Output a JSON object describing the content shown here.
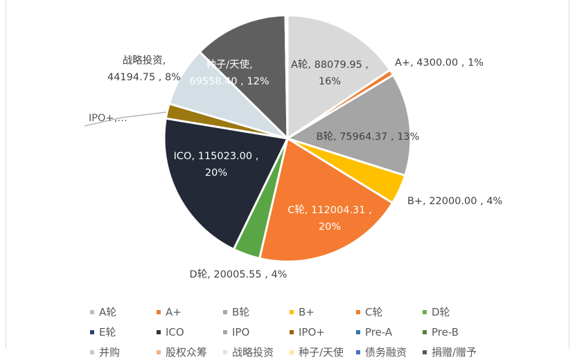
{
  "chart_data": {
    "type": "pie",
    "slices": [
      {
        "name": "A轮",
        "value": 88079.95,
        "percent": "16%",
        "color": "#d9d9d9",
        "label": "A轮, 88079.95 ,\n16%"
      },
      {
        "name": "A+",
        "value": 4300.0,
        "percent": "1%",
        "color": "#ed7d31",
        "label": "A+, 4300.00 , 1%"
      },
      {
        "name": "B轮",
        "value": 75964.37,
        "percent": "13%",
        "color": "#a5a5a5",
        "label": "B轮, 75964.37 , 13%"
      },
      {
        "name": "B+",
        "value": 22000.0,
        "percent": "4%",
        "color": "#ffc000",
        "label": "B+, 22000.00 , 4%"
      },
      {
        "name": "C轮",
        "value": 112004.31,
        "percent": "20%",
        "color": "#f47b31",
        "label": "C轮, 112004.31 ,\n20%"
      },
      {
        "name": "D轮",
        "value": 20005.55,
        "percent": "4%",
        "color": "#5aa546",
        "label": "D轮, 20005.55 , 4%"
      },
      {
        "name": "ICO",
        "value": 115023.0,
        "percent": "20%",
        "color": "#232936",
        "label": "ICO, 115023.00 ,\n20%"
      },
      {
        "name": "IPO+",
        "value": 11000,
        "percent": "",
        "color": "#9c7810",
        "label": "IPO+,…"
      },
      {
        "name": "战略投资",
        "value": 44194.75,
        "percent": "8%",
        "color": "#d3dee5",
        "label": "战略投资,\n44194.75 , 8%"
      },
      {
        "name": "种子/天使",
        "value": 69558.4,
        "percent": "12%",
        "color": "#5f5f5f",
        "label": "种子/天使,\n69558.40 , 12%"
      },
      {
        "name": "债务融资",
        "value": 1500,
        "percent": "",
        "color": "#b8c4cc",
        "label": ""
      }
    ],
    "legend": {
      "rows": [
        [
          {
            "label": "A轮",
            "color": "#bfbfbf"
          },
          {
            "label": "A+",
            "color": "#ed7d31"
          },
          {
            "label": "B轮",
            "color": "#a5a5a5"
          },
          {
            "label": "B+",
            "color": "#ffc000"
          },
          {
            "label": "C轮",
            "color": "#ed7d31"
          },
          {
            "label": "D轮",
            "color": "#70ad47"
          }
        ],
        [
          {
            "label": "E轮",
            "color": "#264478"
          },
          {
            "label": "ICO",
            "color": "#333333"
          },
          {
            "label": "IPO",
            "color": "#a5a5a5"
          },
          {
            "label": "IPO+",
            "color": "#9c6500"
          },
          {
            "label": "Pre-A",
            "color": "#2e75b6"
          },
          {
            "label": "Pre-B",
            "color": "#548235"
          }
        ],
        [
          {
            "label": "并购",
            "color": "#c9c9c9"
          },
          {
            "label": "股权众筹",
            "color": "#f4b183"
          },
          {
            "label": "战略投资",
            "color": "#d9e1f2"
          },
          {
            "label": "种子/天使",
            "color": "#ffe699"
          },
          {
            "label": "债务融资",
            "color": "#4472c4"
          },
          {
            "label": "捐赠/赠予",
            "color": "#595959"
          }
        ]
      ]
    }
  }
}
